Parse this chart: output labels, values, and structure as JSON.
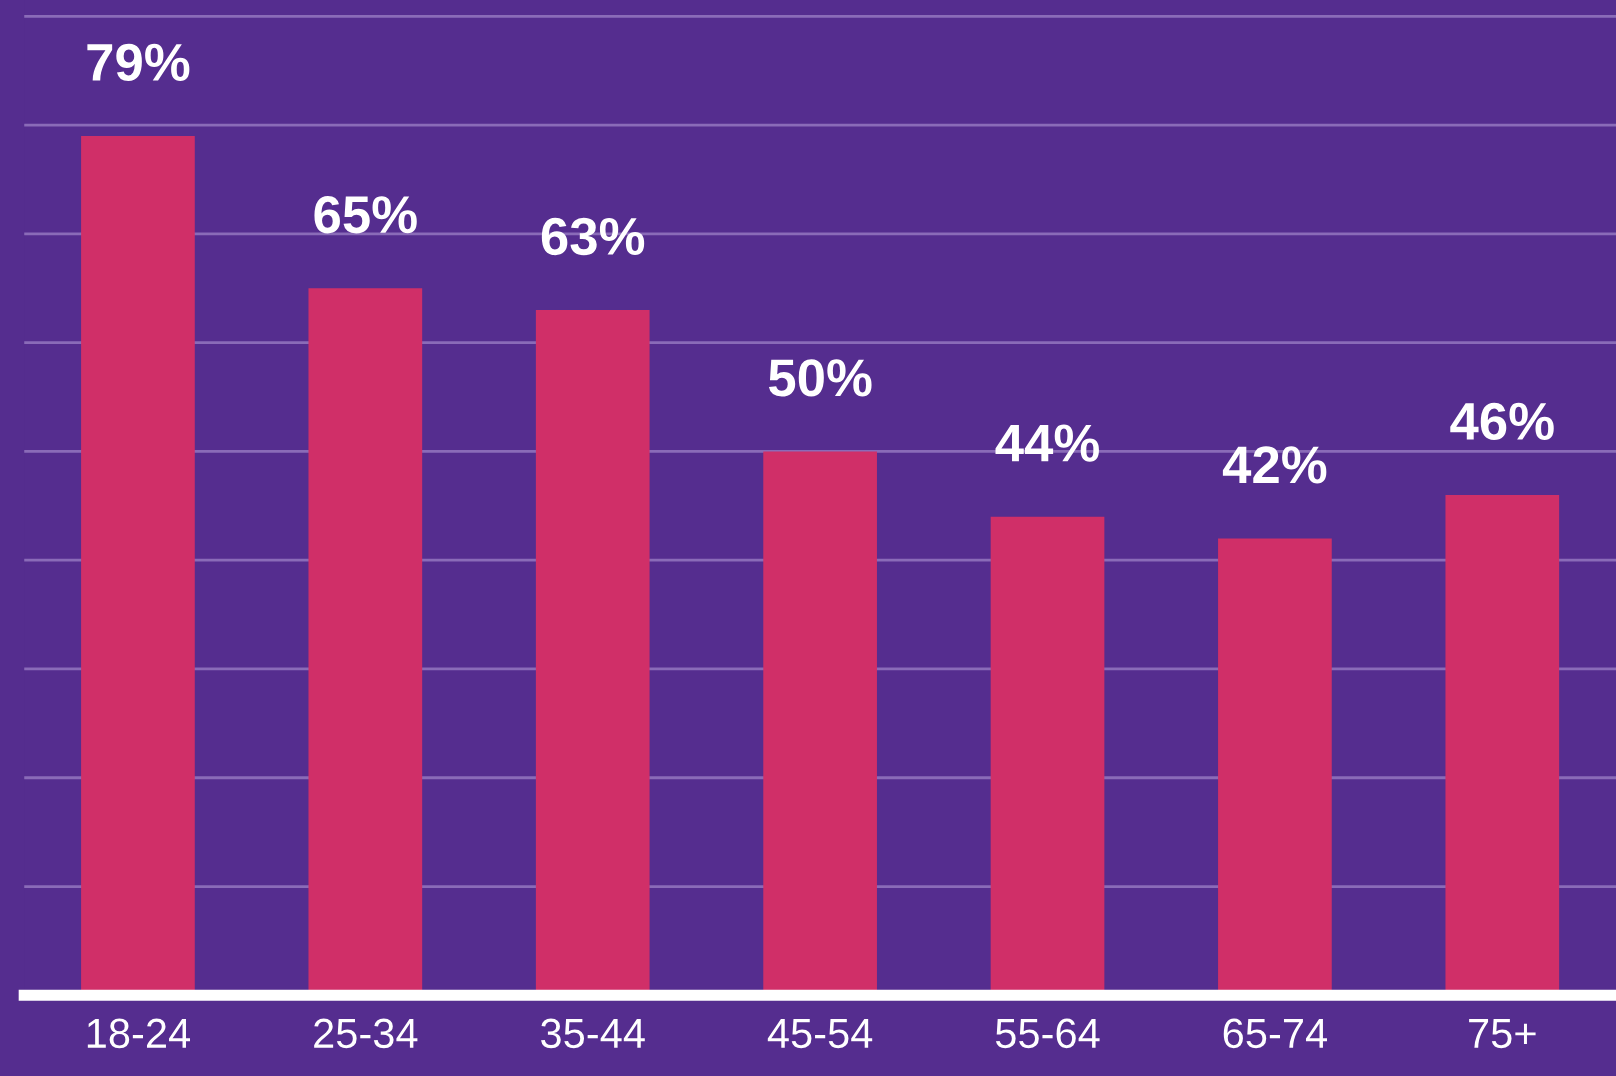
{
  "chart_data": {
    "type": "bar",
    "categories": [
      "18-24",
      "25-34",
      "35-44",
      "45-54",
      "55-64",
      "65-74",
      "75+"
    ],
    "values": [
      79,
      65,
      63,
      50,
      44,
      42,
      46
    ],
    "color": "#d02f68",
    "value_labels": [
      "79%",
      "65%",
      "63%",
      "50%",
      "44%",
      "42%",
      "46%"
    ],
    "ylim": [
      0,
      91.5
    ],
    "yticks": [
      {
        "value": 10,
        "label": null
      },
      {
        "value": 20,
        "label": null
      },
      {
        "value": 30,
        "label": null
      },
      {
        "value": 40,
        "label": null
      },
      {
        "value": 50,
        "label": null
      },
      {
        "value": 60,
        "label": null
      },
      {
        "value": 70,
        "label": null
      },
      {
        "value": 80,
        "label": null
      },
      {
        "value": 90,
        "label": null
      }
    ],
    "tick_labels": "x",
    "grid": "y"
  }
}
